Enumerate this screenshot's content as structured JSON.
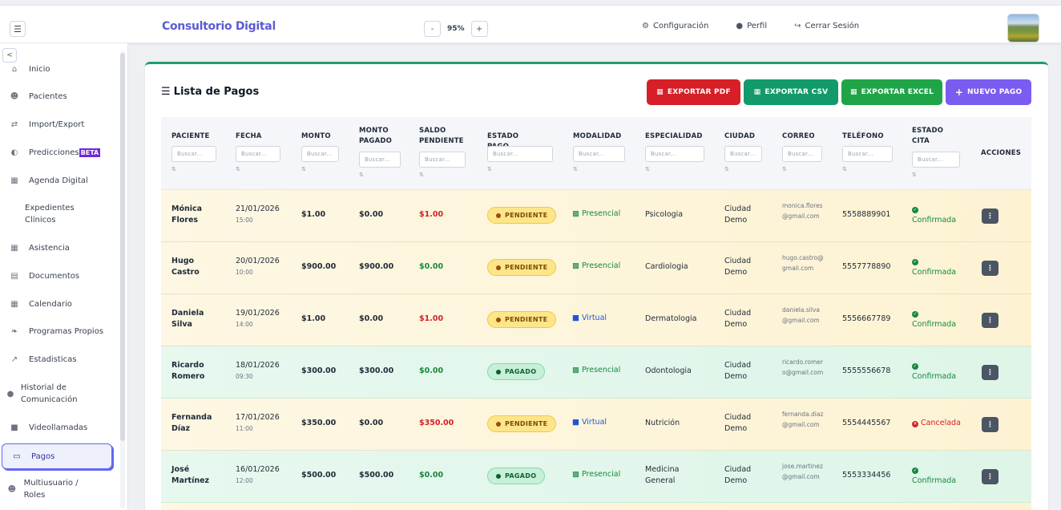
{
  "topbar": {
    "brand": "Consultorio Digital",
    "zoom": {
      "minus": "-",
      "value": "95%",
      "plus": "+"
    },
    "links": [
      {
        "icon": "⚙",
        "label": "Configuración"
      },
      {
        "icon": "●",
        "label": "Perfil"
      },
      {
        "icon": "↪",
        "label": "Cerrar Sesión"
      }
    ]
  },
  "sidebar": {
    "collapse": "<",
    "items": [
      {
        "icon": "⌂",
        "label": "Inicio"
      },
      {
        "icon": "☻",
        "label": "Pacientes"
      },
      {
        "icon": "⇄",
        "label": "Import/Export"
      },
      {
        "icon": "◐",
        "label": "Predicciones",
        "badge": "BETA"
      },
      {
        "icon": "▦",
        "label": "Agenda Digital"
      },
      {
        "icon": "",
        "label": "Expedientes Clínicos"
      },
      {
        "icon": "▦",
        "label": "Asistencia"
      },
      {
        "icon": "▤",
        "label": "Documentos"
      },
      {
        "icon": "▦",
        "label": "Calendario"
      },
      {
        "icon": "❧",
        "label": "Programas Propios"
      },
      {
        "icon": "↗",
        "label": "Estadisticas"
      },
      {
        "icon": "●",
        "label": "Historial de Comunicación"
      },
      {
        "icon": "■",
        "label": "Videollamadas"
      },
      {
        "icon": "▭",
        "label": "Pagos",
        "active": true
      },
      {
        "icon": "☻",
        "label": "Multiusuario / Roles"
      }
    ]
  },
  "main": {
    "title": "Lista de Pagos",
    "buttons": {
      "pdf": "EXPORTAR PDF",
      "csv": "EXPORTAR CSV",
      "excel": "EXPORTAR EXCEL",
      "new": "NUEVO PAGO"
    },
    "filter_placeholder": "Buscar...",
    "sort_icon": "⇅",
    "columns": [
      "PACIENTE",
      "FECHA",
      "MONTO",
      "MONTO PAGADO",
      "SALDO PENDIENTE",
      "ESTADO PAGO",
      "MODALIDAD",
      "ESPECIALIDAD",
      "CIUDAD",
      "CORREO",
      "TELÉFONO",
      "ESTADO CITA",
      "ACCIONES"
    ],
    "rows": [
      {
        "paciente": "Mónica Flores",
        "fecha": "21/01/2026",
        "hora": "15:00",
        "monto": "$1.00",
        "pagado": "$0.00",
        "saldo": "$1.00",
        "estado": "PENDIENTE",
        "modalidad": "Presencial",
        "especialidad": "Psicologia",
        "ciudad": "Ciudad Demo",
        "correo": "monica.flores@gmail.com",
        "telefono": "5558889901",
        "cita": "Confirmada"
      },
      {
        "paciente": "Hugo Castro",
        "fecha": "20/01/2026",
        "hora": "10:00",
        "monto": "$900.00",
        "pagado": "$900.00",
        "saldo": "$0.00",
        "estado": "PENDIENTE",
        "modalidad": "Presencial",
        "especialidad": "Cardiologia",
        "ciudad": "Ciudad Demo",
        "correo": "hugo.castro@gmail.com",
        "telefono": "5557778890",
        "cita": "Confirmada"
      },
      {
        "paciente": "Daniela Silva",
        "fecha": "19/01/2026",
        "hora": "14:00",
        "monto": "$1.00",
        "pagado": "$0.00",
        "saldo": "$1.00",
        "estado": "PENDIENTE",
        "modalidad": "Virtual",
        "especialidad": "Dermatologia",
        "ciudad": "Ciudad Demo",
        "correo": "daniela.silva@gmail.com",
        "telefono": "5556667789",
        "cita": "Confirmada"
      },
      {
        "paciente": "Ricardo Romero",
        "fecha": "18/01/2026",
        "hora": "09:30",
        "monto": "$300.00",
        "pagado": "$300.00",
        "saldo": "$0.00",
        "estado": "PAGADO",
        "modalidad": "Presencial",
        "especialidad": "Odontologia",
        "ciudad": "Ciudad Demo",
        "correo": "ricardo.romero@gmail.com",
        "telefono": "5555556678",
        "cita": "Confirmada"
      },
      {
        "paciente": "Fernanda Díaz",
        "fecha": "17/01/2026",
        "hora": "11:00",
        "monto": "$350.00",
        "pagado": "$0.00",
        "saldo": "$350.00",
        "estado": "PENDIENTE",
        "modalidad": "Virtual",
        "especialidad": "Nutrición",
        "ciudad": "Ciudad Demo",
        "correo": "fernanda.diaz@gmail.com",
        "telefono": "5554445567",
        "cita": "Cancelada"
      },
      {
        "paciente": "José Martínez",
        "fecha": "16/01/2026",
        "hora": "12:00",
        "monto": "$500.00",
        "pagado": "$500.00",
        "saldo": "$0.00",
        "estado": "PAGADO",
        "modalidad": "Presencial",
        "especialidad": "Medicina General",
        "ciudad": "Ciudad Demo",
        "correo": "jose.martinez@gmail.com",
        "telefono": "5553334456",
        "cita": "Confirmada"
      }
    ],
    "action_icon": "⋮"
  }
}
